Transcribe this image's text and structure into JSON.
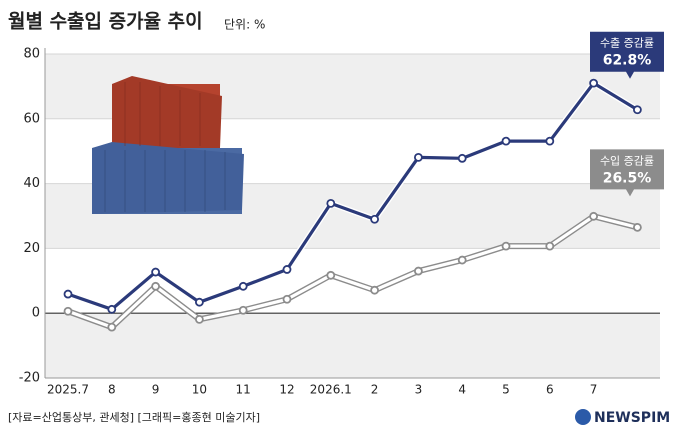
{
  "chart_data": {
    "type": "line",
    "title": "월별 수출입 증가율 추이",
    "unit": "단위: %",
    "source": "[자료=산업통상부, 관세청] [그래픽=홍종현 미술기자]",
    "logo": "NEWSPIM",
    "categories": [
      "2025.7",
      "8",
      "9",
      "10",
      "11",
      "12",
      "2026.1",
      "2",
      "3",
      "4",
      "5",
      "6",
      "7",
      null
    ],
    "series": [
      {
        "name": "수출 증감률",
        "color": "#2b3a7a",
        "end_label": "62.8%",
        "values": [
          5.9,
          1.2,
          12.7,
          3.4,
          8.3,
          13.5,
          33.9,
          29.0,
          48.1,
          47.8,
          53.1,
          53.1,
          71.0,
          62.8
        ]
      },
      {
        "name": "수입 증감률",
        "color": "#8c8c8c",
        "end_label": "26.5%",
        "values": [
          0.6,
          -4.3,
          8.3,
          -1.9,
          0.9,
          4.3,
          11.7,
          7.1,
          13.0,
          16.4,
          20.7,
          20.7,
          29.9,
          26.5
        ]
      }
    ],
    "ylim": [
      -20,
      80
    ],
    "yticks": [
      -20,
      0,
      20,
      40,
      60,
      80
    ],
    "grid": true
  }
}
